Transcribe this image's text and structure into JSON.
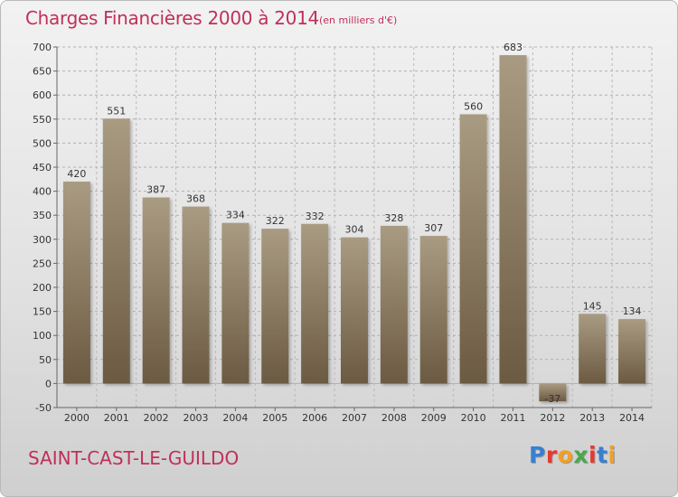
{
  "header": {
    "title": "Charges Financières 2000 à 2014",
    "unit": "(en milliers d'€)"
  },
  "footer": {
    "town": "SAINT-CAST-LE-GUILDO",
    "logo_letters": [
      "P",
      "r",
      "o",
      "x",
      "i",
      "t",
      "i"
    ]
  },
  "colors": {
    "title": "#c0305a",
    "bar_top": "#a99b82",
    "bar_bottom": "#6b5a42",
    "logo": [
      "#3a7fd0",
      "#e8392e",
      "#f2a022",
      "#4aa84a",
      "#e8392e",
      "#3a7fd0",
      "#f2a022"
    ]
  },
  "chart_data": {
    "type": "bar",
    "categories": [
      "2000",
      "2001",
      "2002",
      "2003",
      "2004",
      "2005",
      "2006",
      "2007",
      "2008",
      "2009",
      "2010",
      "2011",
      "2012",
      "2013",
      "2014"
    ],
    "values": [
      420,
      551,
      387,
      368,
      334,
      322,
      332,
      304,
      328,
      307,
      560,
      683,
      -37,
      145,
      134
    ],
    "value_labels": [
      "420",
      "551",
      "387",
      "368",
      "334",
      "322",
      "332",
      "304",
      "328",
      "307",
      "560",
      "683",
      "-37",
      "145",
      "134"
    ],
    "yticks": [
      -50,
      0,
      50,
      100,
      150,
      200,
      250,
      300,
      350,
      400,
      450,
      500,
      550,
      600,
      650,
      700
    ],
    "ylim": [
      -50,
      700
    ],
    "grid": true,
    "title": "Charges Financières 2000 à 2014",
    "xlabel": "",
    "ylabel": ""
  }
}
